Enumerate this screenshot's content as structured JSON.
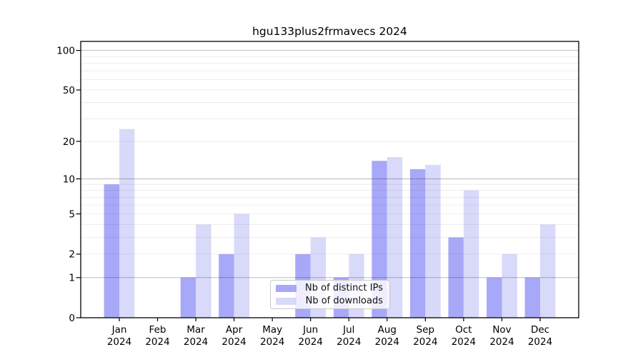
{
  "chart_data": {
    "type": "bar",
    "title": "hgu133plus2frmavecs 2024",
    "categories": [
      "Jan 2024",
      "Feb 2024",
      "Mar 2024",
      "Apr 2024",
      "May 2024",
      "Jun 2024",
      "Jul 2024",
      "Aug 2024",
      "Sep 2024",
      "Oct 2024",
      "Nov 2024",
      "Dec 2024"
    ],
    "series": [
      {
        "name": "Nb of distinct IPs",
        "color": "#a8a8f8",
        "values": [
          9,
          0,
          1,
          2,
          0,
          2,
          1,
          14,
          12,
          3,
          1,
          1
        ]
      },
      {
        "name": "Nb of downloads",
        "color": "#d9d9fa",
        "values": [
          25,
          0,
          4,
          5,
          0,
          3,
          2,
          15,
          13,
          8,
          2,
          4
        ]
      }
    ],
    "xlabel": "",
    "ylabel": "",
    "yscale": "log10(1+value)",
    "y_ticks": [
      0,
      1,
      2,
      5,
      10,
      20,
      50,
      100
    ],
    "ylim": [
      0,
      117
    ],
    "grid": "both, drawn above bars",
    "legend_position": "inside lower center"
  },
  "axis_style": {
    "major_grid_values": [
      1,
      10,
      100
    ],
    "minor_grid_values": [
      2,
      3,
      4,
      5,
      6,
      7,
      8,
      9,
      20,
      30,
      40,
      50,
      60,
      70,
      80,
      90
    ],
    "spine_color": "#000000",
    "major_grid_color": "rgba(0,0,0,0.27)",
    "minor_grid_color": "rgba(0,0,0,0.09)",
    "tick_label_color": "#000000"
  },
  "legend": {
    "items": [
      {
        "label": "Nb of distinct IPs",
        "color": "#a8a8f8"
      },
      {
        "label": "Nb of downloads",
        "color": "#d9d9fa"
      }
    ]
  }
}
